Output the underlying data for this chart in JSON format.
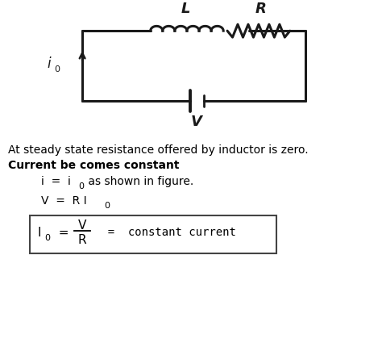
{
  "bg_color": "#ffffff",
  "text_color": "#000000",
  "line1": "At steady state resistance offered by inductor is zero.",
  "line2": "Current be comes constant",
  "line3_eq": "i  =  i",
  "line3_sub": "0",
  "line3_rest": " as shown in figure.",
  "line4_eq": "V  =  R I",
  "line4_sub": "0",
  "box_I": "I",
  "box_I_sub": "0",
  "box_eq": "  =  ",
  "box_V": "V",
  "box_R": "R",
  "box_rest": "  =  constant current",
  "label_L": "L",
  "label_R": "R",
  "label_i": "i",
  "label_V": "V",
  "circuit_color": "#1a1a1a"
}
